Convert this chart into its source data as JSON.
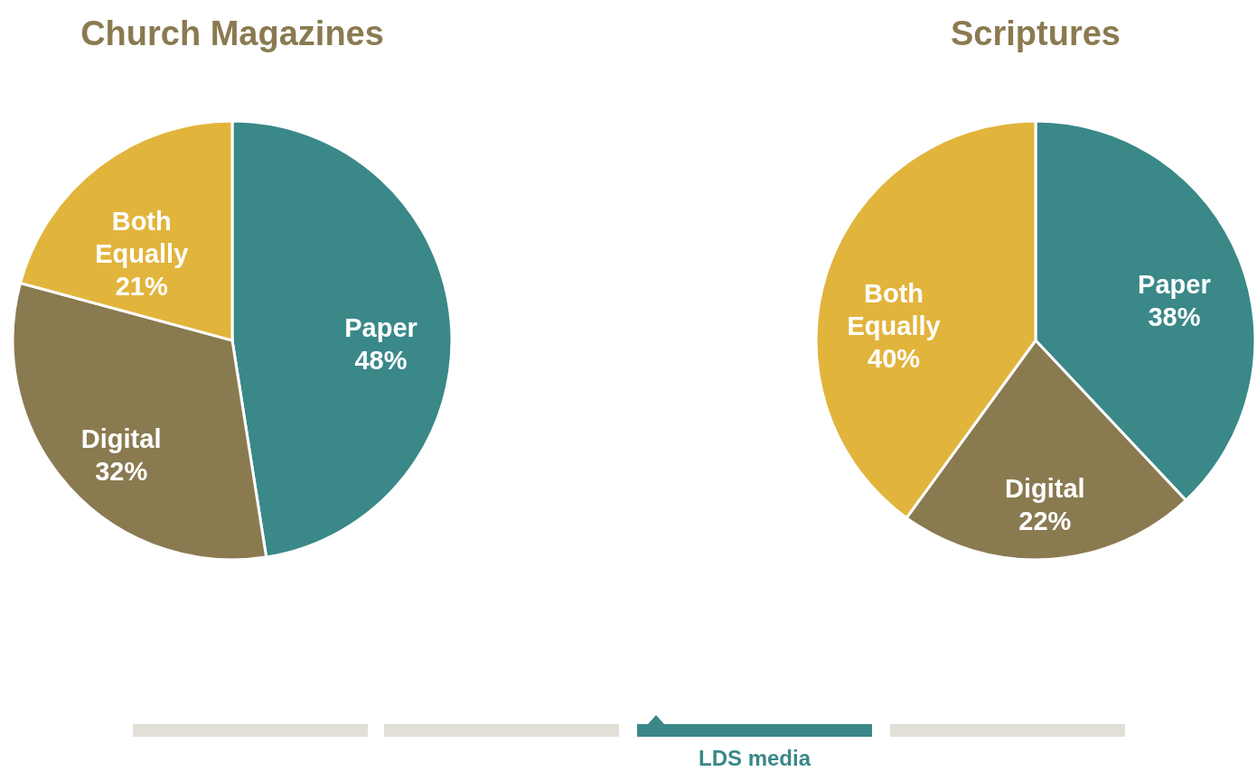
{
  "chart_data": [
    {
      "type": "pie",
      "title": "Church Magazines",
      "categories": [
        "Paper",
        "Digital",
        "Both Equally"
      ],
      "values": [
        48,
        32,
        21
      ],
      "value_labels": [
        "48%",
        "32%",
        "21%"
      ],
      "colors": [
        "#3a8888",
        "#8a7a50",
        "#e1b43c"
      ],
      "legend": false
    },
    {
      "type": "pie",
      "title": "Scriptures",
      "categories": [
        "Paper",
        "Digital",
        "Both Equally"
      ],
      "values": [
        38,
        22,
        40
      ],
      "value_labels": [
        "38%",
        "22%",
        "40%"
      ],
      "colors": [
        "#3a8888",
        "#8a7a50",
        "#e1b43c"
      ],
      "legend": false,
      "annotations": [
        "LDS media"
      ]
    }
  ]
}
